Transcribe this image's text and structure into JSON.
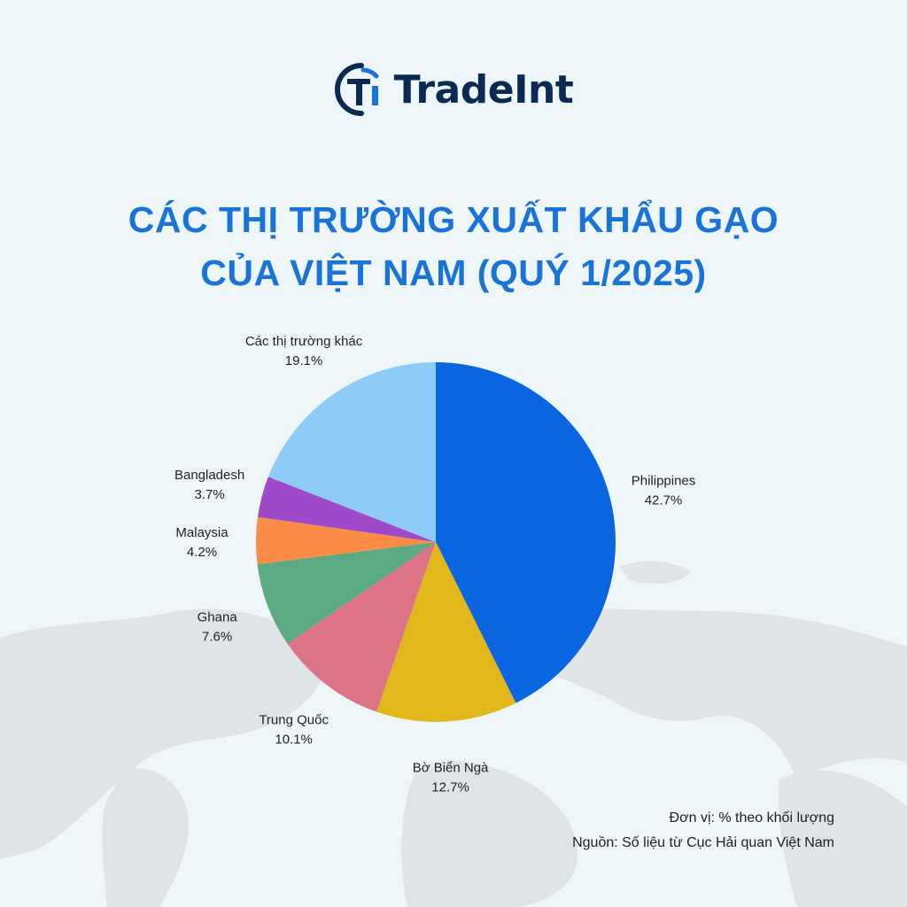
{
  "brand": {
    "name": "TradeInt",
    "mark_letters": "Ti",
    "colors": {
      "navy": "#0b2a52",
      "blue": "#1a73d8"
    }
  },
  "title": {
    "line1": "CÁC THỊ TRƯỜNG XUẤT KHẨU GẠO",
    "line2": "CỦA VIỆT NAM (QUÝ 1/2025)"
  },
  "notes": {
    "unit": "Đơn vị: % theo khối lượng",
    "source": "Nguồn: Số liệu từ Cục Hải quan Việt Nam"
  },
  "chart_data": {
    "type": "pie",
    "title": "CÁC THỊ TRƯỜNG XUẤT KHẨU GẠO CỦA VIỆT NAM (QUÝ 1/2025)",
    "unit": "%",
    "start": "top, clockwise",
    "slices": [
      {
        "label": "Philippines",
        "value": 42.7,
        "display": "42.7%",
        "color": "#0a66e0"
      },
      {
        "label": "Bờ Biển Ngà",
        "value": 12.7,
        "display": "12.7%",
        "color": "#e2b71a"
      },
      {
        "label": "Trung Quốc",
        "value": 10.1,
        "display": "10.1%",
        "color": "#dd7386"
      },
      {
        "label": "Ghana",
        "value": 7.6,
        "display": "7.6%",
        "color": "#5bab82"
      },
      {
        "label": "Malaysia",
        "value": 4.2,
        "display": "4.2%",
        "color": "#fa8c48"
      },
      {
        "label": "Bangladesh",
        "value": 3.7,
        "display": "3.7%",
        "color": "#9e4ac9"
      },
      {
        "label": "Các thị trường khác",
        "value": 19.1,
        "display": "19.1%",
        "color": "#8fcbf7"
      }
    ]
  }
}
